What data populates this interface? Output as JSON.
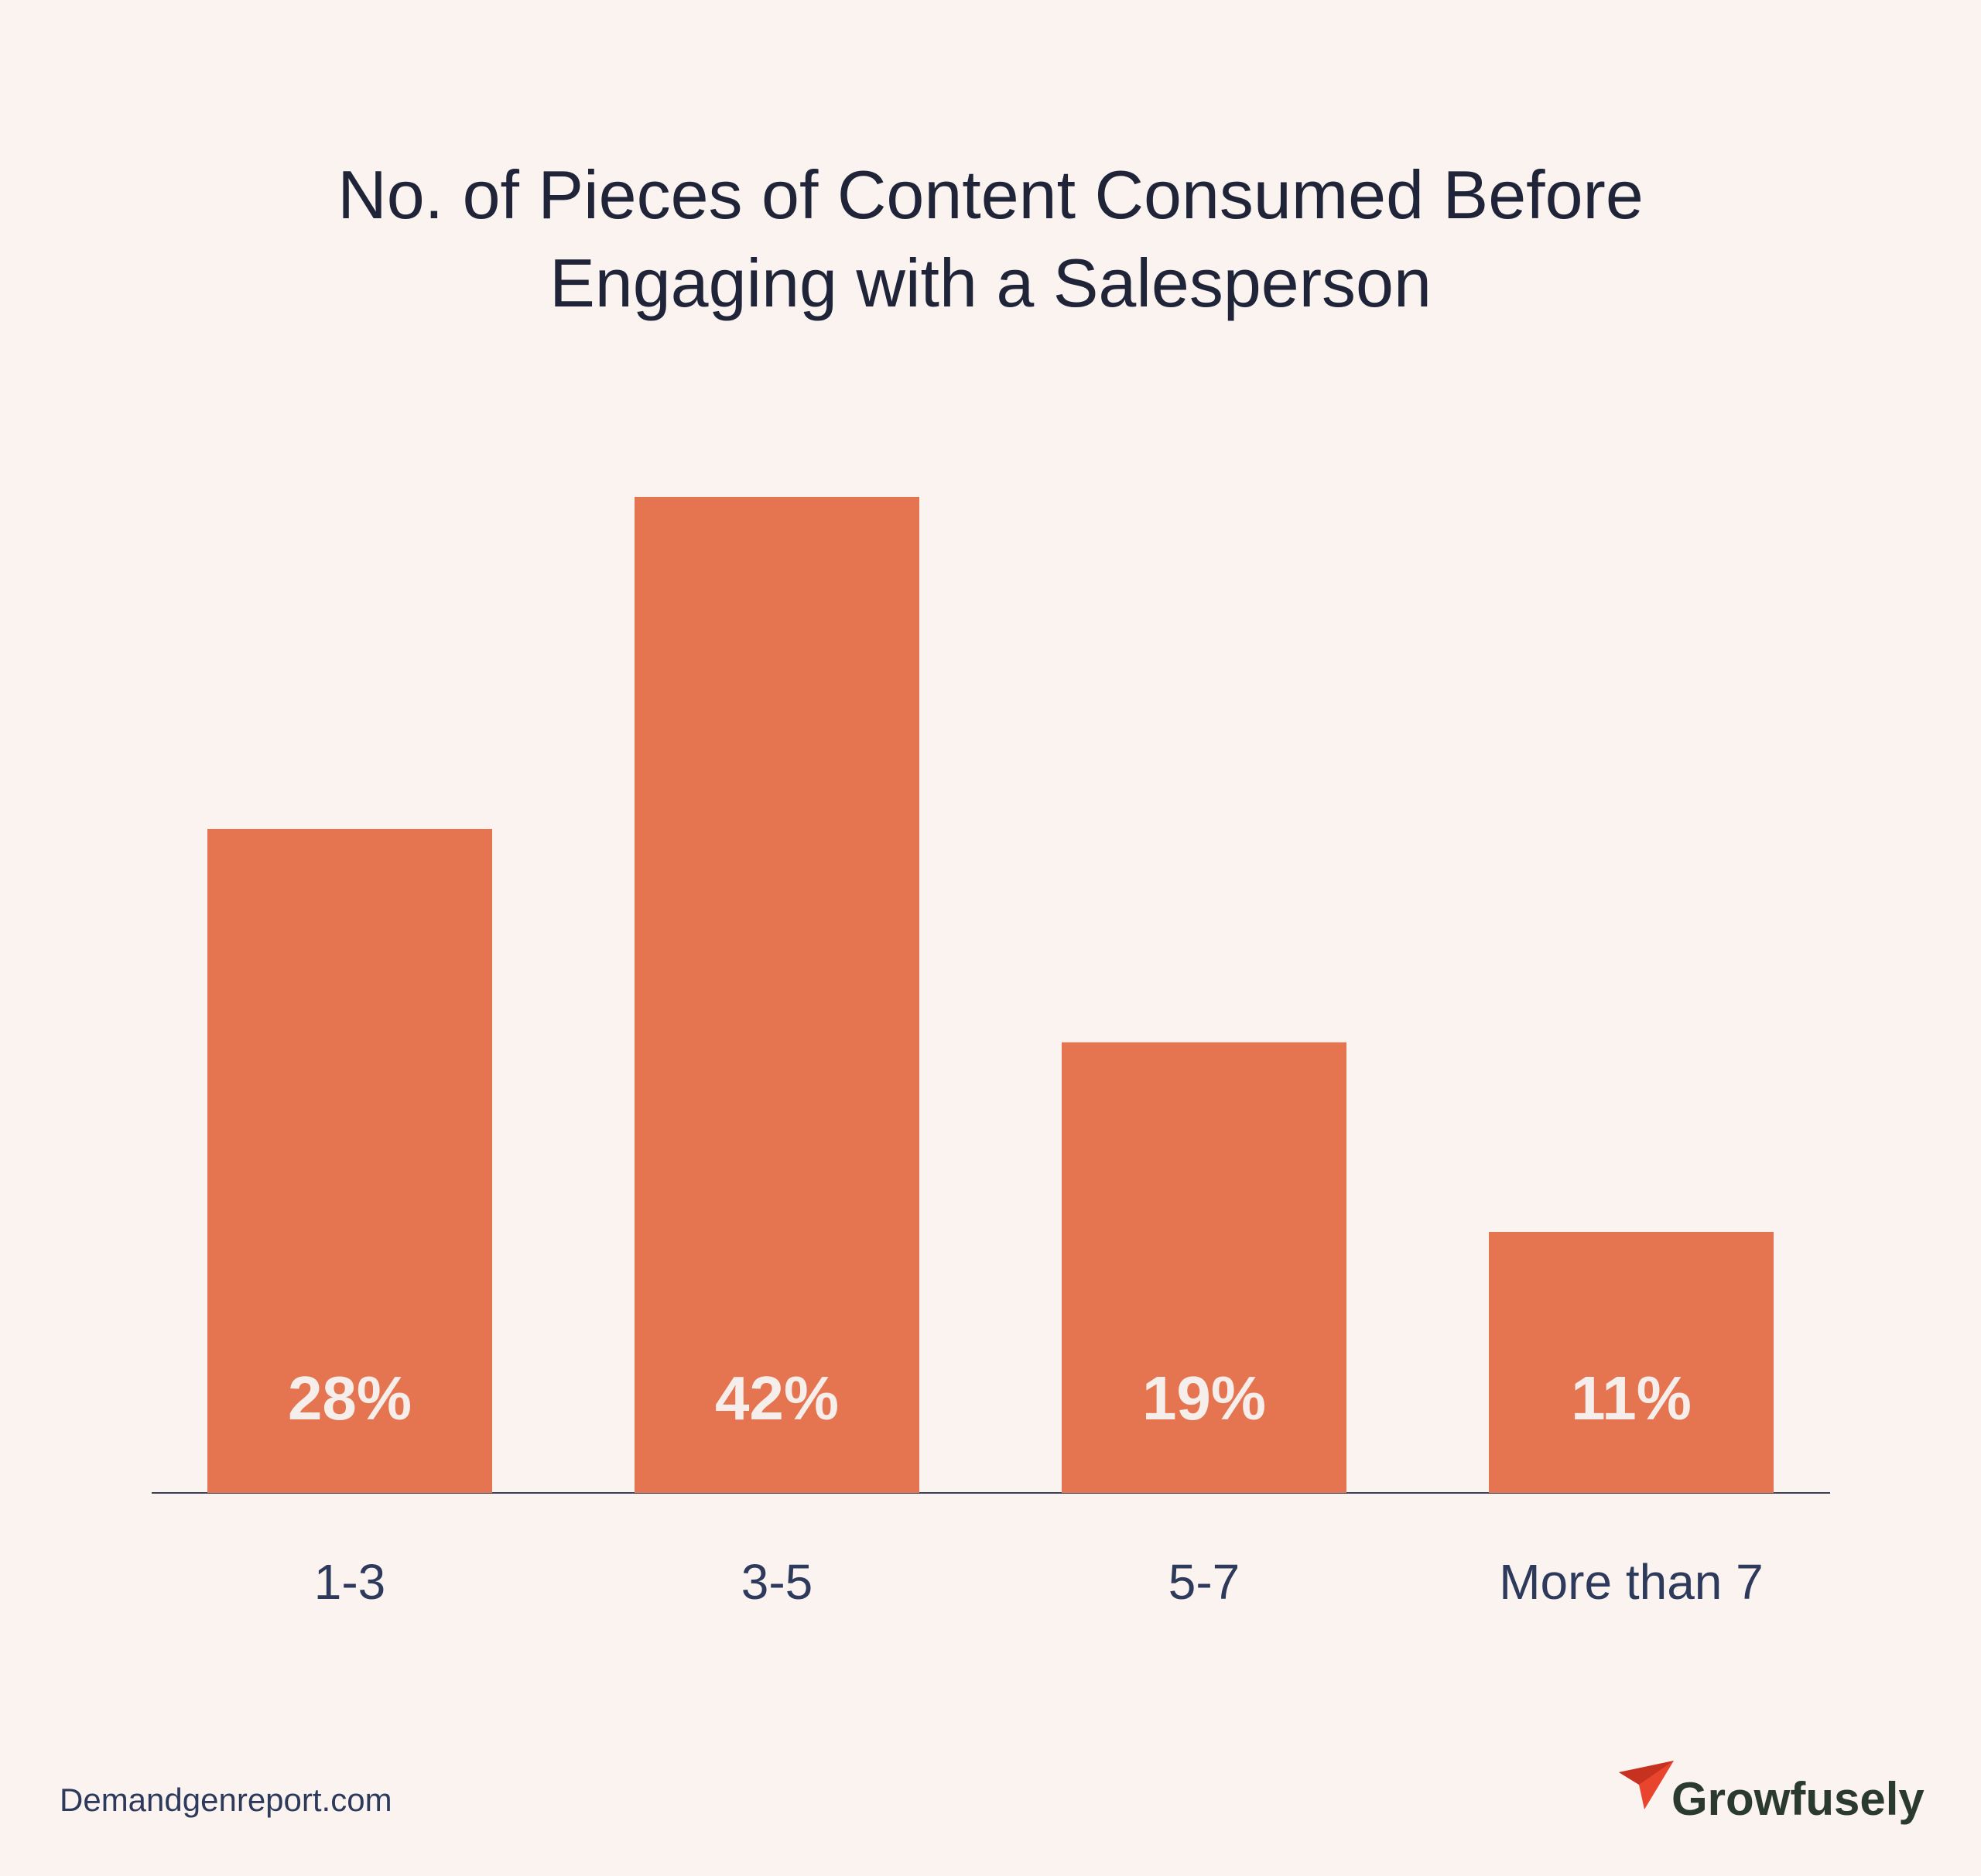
{
  "chart_data": {
    "type": "bar",
    "title": "No. of Pieces of Content Consumed Before Engaging with a Salesperson",
    "categories": [
      "1-3",
      "3-5",
      "5-7",
      "More than 7"
    ],
    "values": [
      28,
      42,
      19,
      11
    ],
    "value_labels": [
      "28%",
      "42%",
      "19%",
      "11%"
    ],
    "color": "#e57451"
  },
  "footer": {
    "source": "Demandgenreport.com",
    "brand": "Growfusely"
  }
}
